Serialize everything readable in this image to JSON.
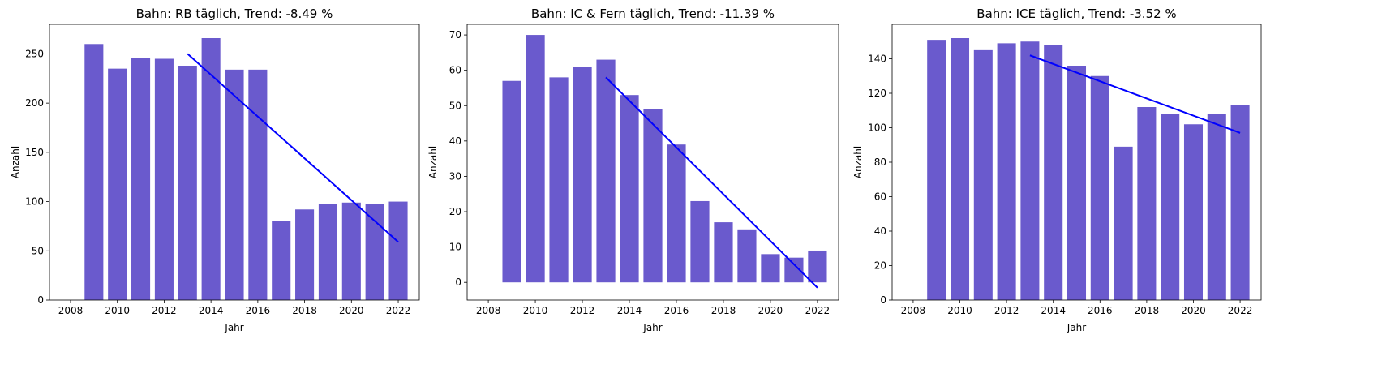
{
  "chart_data": [
    {
      "type": "bar",
      "title": "Bahn: RB täglich, Trend:  -8.49 %",
      "xlabel": "Jahr",
      "ylabel": "Anzahl",
      "x": [
        2009,
        2010,
        2011,
        2012,
        2013,
        2014,
        2015,
        2016,
        2017,
        2018,
        2019,
        2020,
        2021,
        2022
      ],
      "values": [
        260,
        235,
        246,
        245,
        238,
        266,
        234,
        234,
        80,
        92,
        98,
        99,
        98,
        100
      ],
      "xlim": [
        2007.1,
        2022.9
      ],
      "ylim": [
        0,
        280
      ],
      "xticks": [
        2008,
        2010,
        2012,
        2014,
        2016,
        2018,
        2020,
        2022
      ],
      "yticks": [
        0,
        50,
        100,
        150,
        200,
        250
      ],
      "bar_color": "#6a5acd",
      "trend": {
        "x": [
          2013,
          2022
        ],
        "y": [
          250,
          59
        ],
        "color": "#0000ff"
      }
    },
    {
      "type": "bar",
      "title": "Bahn: IC & Fern täglich, Trend:  -11.39 %",
      "xlabel": "Jahr",
      "ylabel": "Anzahl",
      "x": [
        2009,
        2010,
        2011,
        2012,
        2013,
        2014,
        2015,
        2016,
        2017,
        2018,
        2019,
        2020,
        2021,
        2022
      ],
      "values": [
        57,
        70,
        58,
        61,
        63,
        53,
        49,
        39,
        23,
        17,
        15,
        8,
        7,
        9
      ],
      "xlim": [
        2007.1,
        2022.9
      ],
      "ylim": [
        -5,
        73
      ],
      "xticks": [
        2008,
        2010,
        2012,
        2014,
        2016,
        2018,
        2020,
        2022
      ],
      "yticks": [
        0,
        10,
        20,
        30,
        40,
        50,
        60,
        70
      ],
      "bar_color": "#6a5acd",
      "trend": {
        "x": [
          2013,
          2022
        ],
        "y": [
          58,
          -1.5
        ],
        "color": "#0000ff"
      }
    },
    {
      "type": "bar",
      "title": "Bahn: ICE täglich, Trend:  -3.52 %",
      "xlabel": "Jahr",
      "ylabel": "Anzahl",
      "x": [
        2009,
        2010,
        2011,
        2012,
        2013,
        2014,
        2015,
        2016,
        2017,
        2018,
        2019,
        2020,
        2021,
        2022
      ],
      "values": [
        151,
        152,
        145,
        149,
        150,
        148,
        136,
        130,
        89,
        112,
        108,
        102,
        108,
        113
      ],
      "xlim": [
        2007.1,
        2022.9
      ],
      "ylim": [
        0,
        160
      ],
      "xticks": [
        2008,
        2010,
        2012,
        2014,
        2016,
        2018,
        2020,
        2022
      ],
      "yticks": [
        0,
        20,
        40,
        60,
        80,
        100,
        120,
        140
      ],
      "bar_color": "#6a5acd",
      "trend": {
        "x": [
          2013,
          2022
        ],
        "y": [
          142,
          97
        ],
        "color": "#0000ff"
      }
    }
  ]
}
